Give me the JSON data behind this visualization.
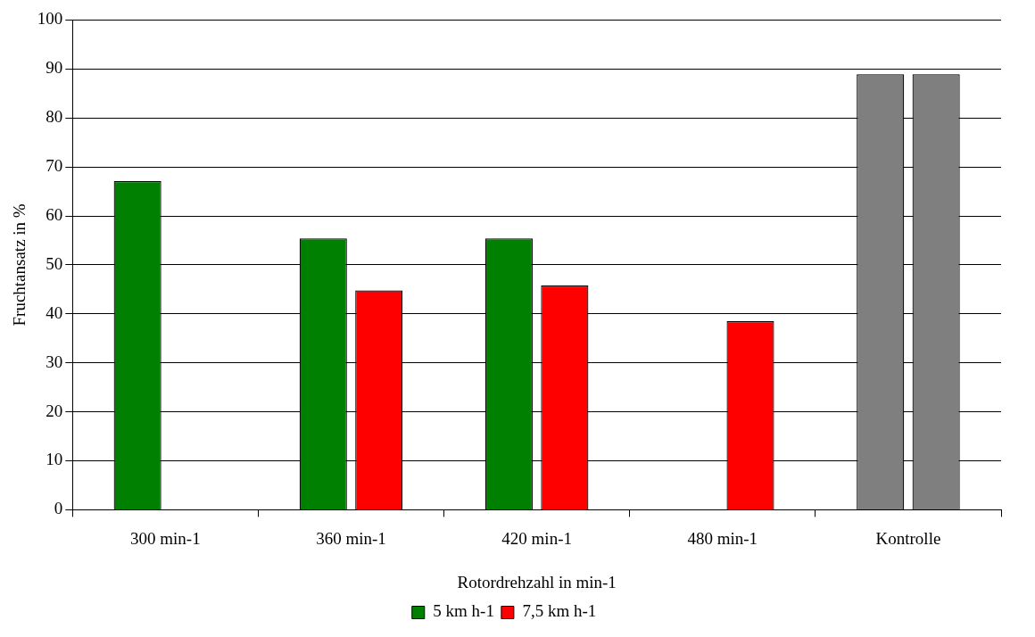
{
  "chart_data": {
    "type": "bar",
    "xlabel": "Rotordrehzahl in min-1",
    "ylabel": "Fruchtansatz in %",
    "categories": [
      "300 min-1",
      "360 min-1",
      "420 min-1",
      "480 min-1",
      "Kontrolle"
    ],
    "series": [
      {
        "name": "5 km h-1",
        "color": "#008000",
        "colors": [
          "#008000",
          "#008000",
          "#008000",
          "#008000",
          "#7f7f7f"
        ],
        "values": [
          67.1,
          55.4,
          55.4,
          null,
          88.9
        ]
      },
      {
        "name": "7,5 km h-1",
        "color": "#ff0000",
        "colors": [
          "#ff0000",
          "#ff0000",
          "#ff0000",
          "#ff0000",
          "#7f7f7f"
        ],
        "values": [
          null,
          44.8,
          45.8,
          38.5,
          88.9
        ]
      }
    ],
    "ylim": [
      0,
      100
    ],
    "yticks": [
      0,
      10,
      20,
      30,
      40,
      50,
      60,
      70,
      80,
      90,
      100
    ],
    "grid": "y",
    "legend": "bottom"
  }
}
